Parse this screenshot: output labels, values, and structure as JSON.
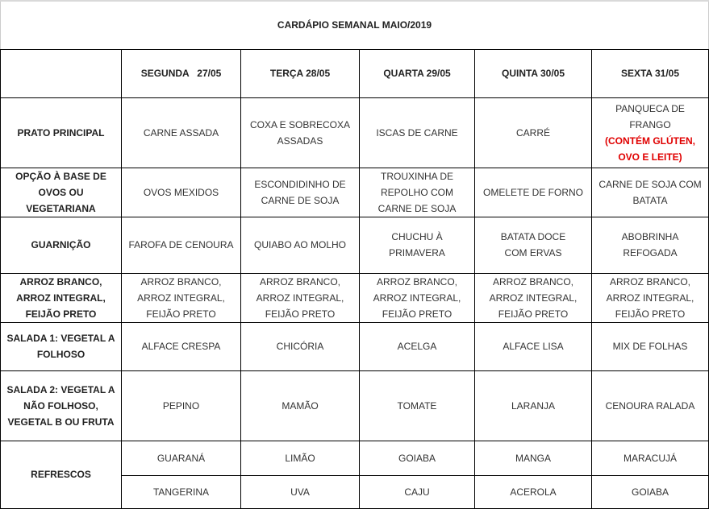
{
  "title": "CARDÁPIO SEMANAL MAIO/2019",
  "days": [
    "SEGUNDA   27/05",
    "TERÇA 28/05",
    "QUARTA 29/05",
    "QUINTA 30/05",
    "SEXTA 31/05"
  ],
  "rows": [
    {
      "label": "PRATO PRINCIPAL",
      "cells": [
        "CARNE ASSADA",
        "COXA E SOBRECOXA ASSADAS",
        "ISCAS DE CARNE",
        "CARRÉ",
        "PANQUECA DE FRANGO"
      ],
      "note": "(CONTÉM GLÚTEN, OVO E LEITE)",
      "note_color": "#e00000"
    },
    {
      "label": "OPÇÃO À BASE DE OVOS OU VEGETARIANA",
      "cells": [
        "OVOS MEXIDOS",
        "ESCONDIDINHO DE CARNE DE SOJA",
        "TROUXINHA DE REPOLHO  COM CARNE DE SOJA",
        "OMELETE DE FORNO",
        "CARNE DE SOJA COM BATATA"
      ]
    },
    {
      "label": "GUARNIÇÃO",
      "cells": [
        "FAROFA DE CENOURA",
        "QUIABO AO MOLHO",
        "CHUCHU À PRIMAVERA",
        "BATATA DOCE COM ERVAS",
        "ABOBRINHA REFOGADA"
      ]
    },
    {
      "label": "ARROZ BRANCO, ARROZ INTEGRAL, FEIJÃO PRETO",
      "cells": [
        "ARROZ BRANCO, ARROZ INTEGRAL, FEIJÃO PRETO",
        "ARROZ BRANCO, ARROZ INTEGRAL, FEIJÃO PRETO",
        "ARROZ BRANCO, ARROZ INTEGRAL, FEIJÃO PRETO",
        "ARROZ BRANCO, ARROZ INTEGRAL, FEIJÃO PRETO",
        "ARROZ BRANCO, ARROZ INTEGRAL, FEIJÃO PRETO"
      ]
    },
    {
      "label": "SALADA 1: VEGETAL A FOLHOSO",
      "cells": [
        "ALFACE CRESPA",
        "CHICÓRIA",
        "ACELGA",
        "ALFACE LISA",
        "MIX DE FOLHAS"
      ]
    },
    {
      "label": "SALADA 2: VEGETAL A NÃO FOLHOSO, VEGETAL B OU FRUTA",
      "cells": [
        "PEPINO",
        "MAMÃO",
        "TOMATE",
        "LARANJA",
        "CENOURA RALADA"
      ]
    }
  ],
  "refrescos": {
    "label": "REFRESCOS",
    "row1": [
      "GUARANÁ",
      "LIMÃO",
      "GOIABA",
      "MANGA",
      "MARACUJÁ"
    ],
    "row2": [
      "TANGERINA",
      "UVA",
      "CAJU",
      "ACEROLA",
      "GOIABA"
    ]
  }
}
